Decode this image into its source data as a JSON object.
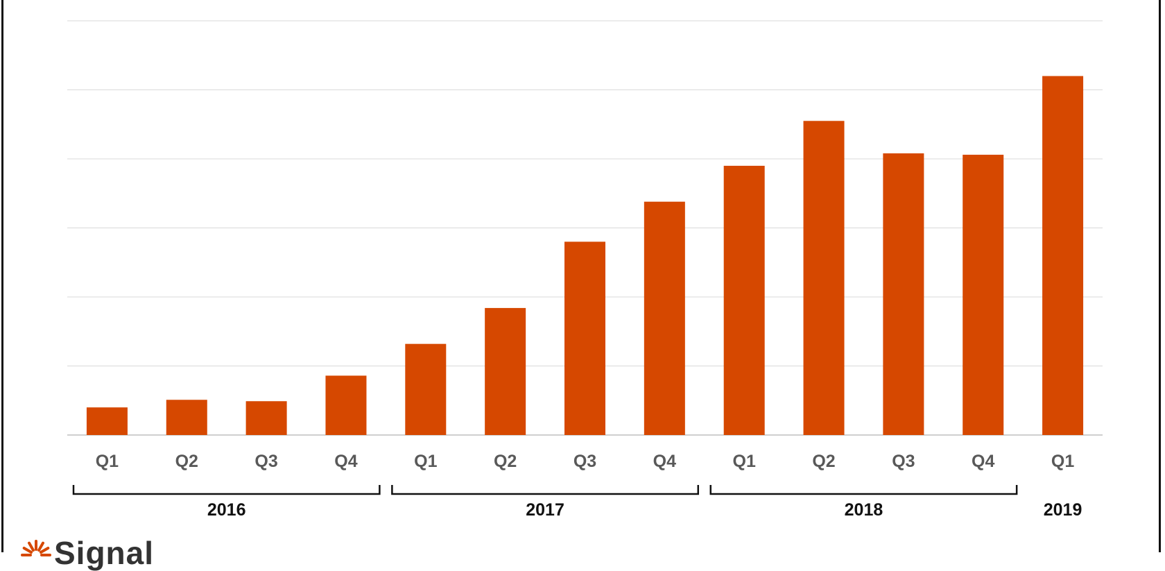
{
  "chart_data": {
    "type": "bar",
    "categories": [
      "Q1",
      "Q2",
      "Q3",
      "Q4",
      "Q1",
      "Q2",
      "Q3",
      "Q4",
      "Q1",
      "Q2",
      "Q3",
      "Q4",
      "Q1"
    ],
    "year_groups": [
      {
        "label": "2016",
        "from": 0,
        "to": 3
      },
      {
        "label": "2017",
        "from": 4,
        "to": 7
      },
      {
        "label": "2018",
        "from": 8,
        "to": 11
      },
      {
        "label": "2019",
        "from": 12,
        "to": 12
      }
    ],
    "values": [
      0.4,
      0.51,
      0.49,
      0.86,
      1.32,
      1.84,
      2.8,
      3.38,
      3.9,
      4.55,
      4.08,
      4.06,
      5.2
    ],
    "ylim": [
      0,
      6
    ],
    "y_gridlines": [
      0,
      1,
      2,
      3,
      4,
      5,
      6
    ],
    "grid": true,
    "legend": "none",
    "bar_color": "#d64800",
    "title": "",
    "xlabel": "",
    "ylabel": ""
  },
  "logo": {
    "text": "Signal",
    "color_icon": "#d64800",
    "icon": "sun-icon"
  }
}
